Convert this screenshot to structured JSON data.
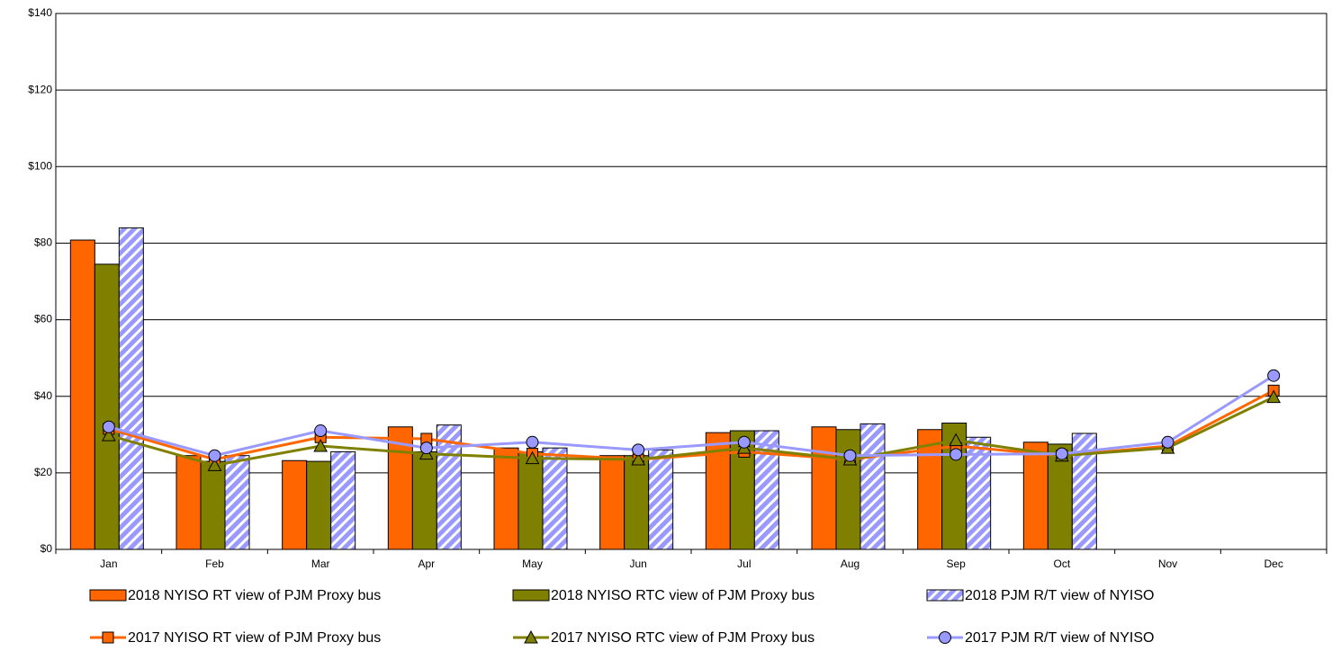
{
  "chart_data": {
    "type": "bar",
    "categories": [
      "Jan",
      "Feb",
      "Mar",
      "Apr",
      "May",
      "Jun",
      "Jul",
      "Aug",
      "Sep",
      "Oct",
      "Nov",
      "Dec"
    ],
    "series": [
      {
        "name": "2018 NYISO RT view of PJM Proxy bus",
        "type": "bar",
        "color": "#ff6600",
        "values": [
          80.8,
          24.5,
          23.2,
          32,
          26.5,
          24.5,
          30.5,
          32,
          31.3,
          28,
          null,
          null
        ]
      },
      {
        "name": "2018 NYISO RTC view of PJM Proxy bus",
        "type": "bar",
        "color": "#808000",
        "values": [
          74.5,
          23,
          23,
          25.5,
          25.5,
          24.5,
          31,
          31.3,
          33,
          27.5,
          null,
          null
        ]
      },
      {
        "name": "2018 PJM R/T view of NYISO",
        "type": "bar",
        "color": "#9999ff",
        "pattern": "hatch",
        "values": [
          84,
          24.5,
          25.5,
          32.5,
          26.5,
          26,
          31,
          32.8,
          29.3,
          30.3,
          null,
          null
        ]
      },
      {
        "name": "2017 NYISO RT view of PJM Proxy bus",
        "type": "line",
        "color": "#ff6600",
        "marker": "square",
        "values": [
          31.5,
          23.5,
          29.3,
          28.9,
          25,
          23.5,
          25.5,
          23.5,
          27,
          24.5,
          27,
          41.5
        ]
      },
      {
        "name": "2017 NYISO RTC view of PJM Proxy bus",
        "type": "line",
        "color": "#808000",
        "marker": "triangle",
        "values": [
          29.8,
          22,
          27,
          25,
          23.8,
          23.5,
          26.5,
          23.5,
          28.5,
          24.5,
          26.5,
          39.8
        ]
      },
      {
        "name": "2017 PJM R/T view of NYISO",
        "type": "line",
        "color": "#9999ff",
        "marker": "circle",
        "values": [
          32,
          24.5,
          31,
          26.5,
          28,
          26,
          28,
          24.5,
          24.8,
          25,
          28,
          45.4
        ]
      }
    ],
    "ylim": [
      0,
      140
    ],
    "yticks": [
      {
        "value": 0,
        "label": "$0"
      },
      {
        "value": 20,
        "label": "$20"
      },
      {
        "value": 40,
        "label": "$40"
      },
      {
        "value": 60,
        "label": "$60"
      },
      {
        "value": 80,
        "label": "$80"
      },
      {
        "value": 100,
        "label": "$100"
      },
      {
        "value": 120,
        "label": "$120"
      },
      {
        "value": 140,
        "label": "$140"
      }
    ],
    "grid": true,
    "legend": "bottom"
  }
}
